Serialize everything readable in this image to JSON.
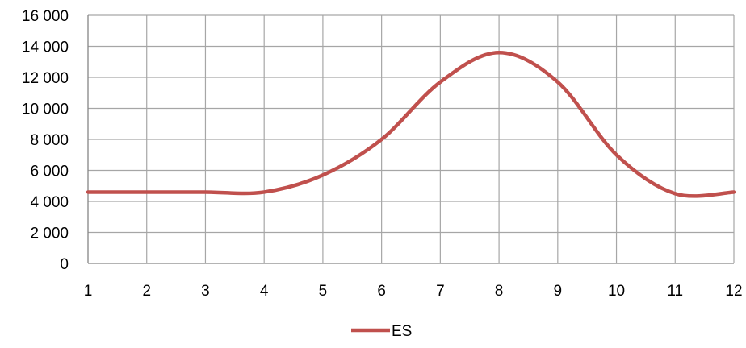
{
  "chart_data": {
    "type": "line",
    "x": [
      1,
      2,
      3,
      4,
      5,
      6,
      7,
      8,
      9,
      10,
      11,
      12
    ],
    "x_tick_labels": [
      "1",
      "2",
      "3",
      "4",
      "5",
      "6",
      "7",
      "8",
      "9",
      "10",
      "11",
      "12"
    ],
    "y_tick_labels": [
      "0",
      "2 000",
      "4 000",
      "6 000",
      "8 000",
      "10 000",
      "12 000",
      "14 000",
      "16 000"
    ],
    "ylim": [
      0,
      16000
    ],
    "xlim": [
      1,
      12
    ],
    "grid": true,
    "legend_position": "bottom",
    "smooth": true,
    "series": [
      {
        "name": "ES",
        "color": "#C0504D",
        "values": [
          4600,
          4600,
          4600,
          4600,
          5700,
          8000,
          11700,
          13600,
          11700,
          7000,
          4500,
          4600
        ]
      }
    ]
  }
}
